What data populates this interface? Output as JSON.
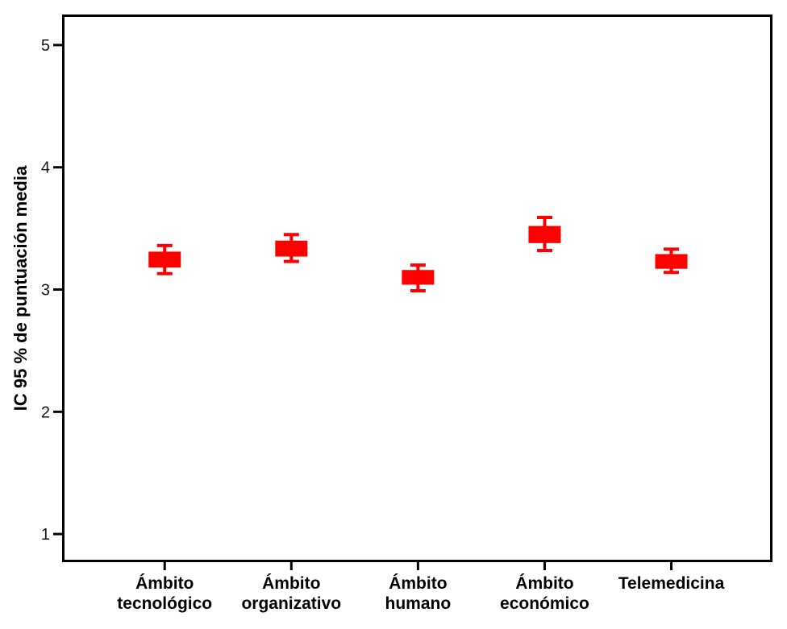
{
  "figure": {
    "background_color": "#ffffff",
    "frame_color": "#000000",
    "marker_color": "#ff0000"
  },
  "chart_data": {
    "type": "errorbar",
    "title": "",
    "xlabel": "",
    "ylabel": "IC 95 % de puntuación media",
    "categories": [
      "Ámbito tecnológico",
      "Ámbito organizativo",
      "Ámbito humano",
      "Ámbito económico",
      "Telemedicina"
    ],
    "category_label_lines": [
      [
        "Ámbito",
        "tecnológico"
      ],
      [
        "Ámbito",
        "organizativo"
      ],
      [
        "Ámbito",
        "humano"
      ],
      [
        "Ámbito",
        "económico"
      ],
      [
        "Telemedicina"
      ]
    ],
    "yticks": [
      1,
      2,
      3,
      4,
      5
    ],
    "ylim": [
      0.78,
      5.24
    ],
    "grid": false,
    "legend": null,
    "series": [
      {
        "category": "Ámbito tecnológico",
        "mean": 3.25,
        "box_high": 3.31,
        "box_low": 3.18,
        "whisker_high": 3.36,
        "whisker_low": 3.13
      },
      {
        "category": "Ámbito organizativo",
        "mean": 3.33,
        "box_high": 3.4,
        "box_low": 3.27,
        "whisker_high": 3.45,
        "whisker_low": 3.23
      },
      {
        "category": "Ámbito humano",
        "mean": 3.1,
        "box_high": 3.16,
        "box_low": 3.04,
        "whisker_high": 3.2,
        "whisker_low": 2.99
      },
      {
        "category": "Ámbito económico",
        "mean": 3.45,
        "box_high": 3.52,
        "box_low": 3.38,
        "whisker_high": 3.59,
        "whisker_low": 3.32
      },
      {
        "category": "Telemedicina",
        "mean": 3.23,
        "box_high": 3.29,
        "box_low": 3.17,
        "whisker_high": 3.33,
        "whisker_low": 3.14
      }
    ]
  }
}
